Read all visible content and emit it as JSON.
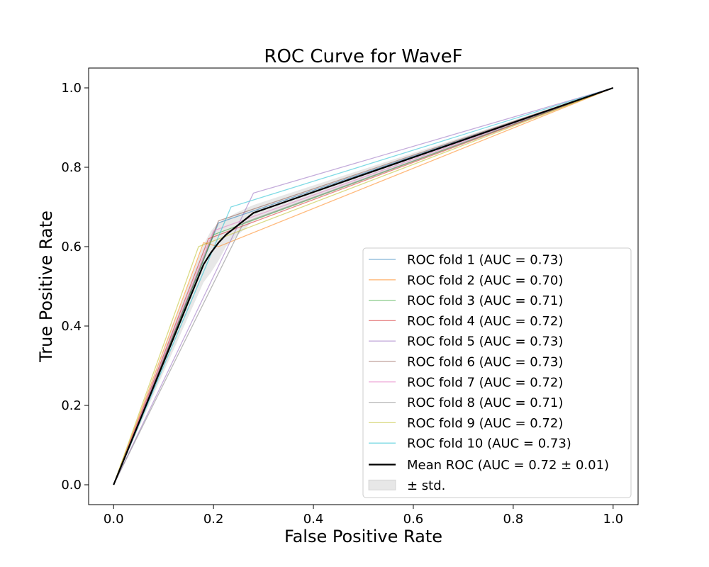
{
  "chart_data": {
    "type": "line",
    "title": "ROC Curve for WaveF",
    "xlabel": "False Positive Rate",
    "ylabel": "True Positive Rate",
    "xlim": [
      -0.05,
      1.05
    ],
    "ylim": [
      -0.05,
      1.05
    ],
    "xticks": [
      "0.0",
      "0.2",
      "0.4",
      "0.6",
      "0.8",
      "1.0"
    ],
    "yticks": [
      "0.0",
      "0.2",
      "0.4",
      "0.6",
      "0.8",
      "1.0"
    ],
    "grid": false,
    "legend_position": "lower right",
    "series": [
      {
        "name": "ROC fold 1 (AUC = 0.73)",
        "color": "#1f77b4",
        "x": [
          0,
          0.21,
          1
        ],
        "y": [
          0,
          0.66,
          1
        ]
      },
      {
        "name": "ROC fold 2 (AUC = 0.70)",
        "color": "#ff7f0e",
        "x": [
          0,
          0.18,
          0.21,
          1
        ],
        "y": [
          0,
          0.61,
          0.6,
          1
        ]
      },
      {
        "name": "ROC fold 3 (AUC = 0.71)",
        "color": "#2ca02c",
        "x": [
          0,
          0.2,
          1
        ],
        "y": [
          0,
          0.63,
          1
        ]
      },
      {
        "name": "ROC fold 4 (AUC = 0.72)",
        "color": "#d62728",
        "x": [
          0,
          0.19,
          1
        ],
        "y": [
          0,
          0.62,
          1
        ]
      },
      {
        "name": "ROC fold 5 (AUC = 0.73)",
        "color": "#9467bd",
        "x": [
          0,
          0.28,
          1
        ],
        "y": [
          0,
          0.735,
          1
        ]
      },
      {
        "name": "ROC fold 6 (AUC = 0.73)",
        "color": "#8c564b",
        "x": [
          0,
          0.21,
          1
        ],
        "y": [
          0,
          0.665,
          1
        ]
      },
      {
        "name": "ROC fold 7 (AUC = 0.72)",
        "color": "#e377c2",
        "x": [
          0,
          0.2,
          1
        ],
        "y": [
          0,
          0.64,
          1
        ]
      },
      {
        "name": "ROC fold 8 (AUC = 0.71)",
        "color": "#7f7f7f",
        "x": [
          0,
          0.26,
          1
        ],
        "y": [
          0,
          0.66,
          1
        ]
      },
      {
        "name": "ROC fold 9 (AUC = 0.72)",
        "color": "#bcbd22",
        "x": [
          0,
          0.17,
          1
        ],
        "y": [
          0,
          0.6,
          1
        ]
      },
      {
        "name": "ROC fold 10 (AUC = 0.73)",
        "color": "#17becf",
        "x": [
          0,
          0.235,
          1
        ],
        "y": [
          0,
          0.7,
          1
        ]
      }
    ],
    "mean": {
      "name": "Mean ROC (AUC = 0.72 ± 0.01)",
      "color": "#000000",
      "x": [
        0,
        0.18,
        0.195,
        0.21,
        0.225,
        0.245,
        0.28,
        1
      ],
      "y": [
        0,
        0.555,
        0.585,
        0.61,
        0.63,
        0.65,
        0.685,
        1
      ]
    },
    "std_band": {
      "name": "± std.",
      "color": "#bbbbbb",
      "x": [
        0,
        0.18,
        0.195,
        0.21,
        0.225,
        0.245,
        0.28,
        1
      ],
      "upper": [
        0,
        0.605,
        0.64,
        0.66,
        0.67,
        0.685,
        0.705,
        1
      ],
      "lower": [
        0,
        0.51,
        0.535,
        0.565,
        0.6,
        0.625,
        0.665,
        1
      ]
    }
  }
}
